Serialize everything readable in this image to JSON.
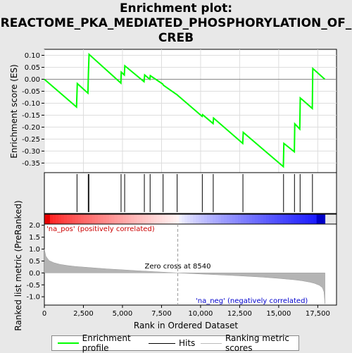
{
  "title_lines": [
    "Enrichment plot:",
    "REACTOME_PKA_MEDIATED_PHOSPHORYLATION_OF_",
    "CREB"
  ],
  "chart_data": {
    "type": "line",
    "xlabel": "Rank in Ordered Dataset",
    "x_ticks": [
      0,
      2500,
      5000,
      7500,
      10000,
      12500,
      15000,
      17500
    ],
    "x_tick_labels": [
      "0",
      "2,500",
      "5,000",
      "7,500",
      "10,000",
      "12,500",
      "15,000",
      "17,500"
    ],
    "xlim": [
      0,
      18700
    ],
    "es_panel": {
      "ylabel": "Enrichment score (ES)",
      "ylim": [
        -0.39,
        0.125
      ],
      "y_ticks": [
        0.1,
        0.05,
        0.0,
        -0.05,
        -0.1,
        -0.15,
        -0.2,
        -0.25,
        -0.3,
        -0.35
      ],
      "y_tick_labels": [
        "0.10",
        "0.05",
        "0.00",
        "-0.05",
        "-0.10",
        "-0.15",
        "-0.20",
        "-0.25",
        "-0.30",
        "-0.35"
      ],
      "series": [
        {
          "name": "Enrichment profile",
          "color": "#00ff00",
          "x": [
            0,
            2060,
            2110,
            2790,
            2820,
            2860,
            4900,
            4920,
            5120,
            5150,
            6380,
            6420,
            6750,
            6780,
            7580,
            7620,
            8500,
            10100,
            10130,
            10800,
            10830,
            12700,
            12730,
            15300,
            15330,
            16000,
            16030,
            16350,
            16380,
            17150,
            17180,
            17950
          ],
          "y": [
            0.0,
            -0.116,
            -0.018,
            -0.058,
            0.025,
            0.104,
            -0.016,
            0.03,
            0.018,
            0.056,
            -0.01,
            0.018,
            0.0,
            0.015,
            -0.02,
            -0.025,
            -0.065,
            -0.155,
            -0.148,
            -0.185,
            -0.162,
            -0.268,
            -0.222,
            -0.365,
            -0.268,
            -0.303,
            -0.186,
            -0.208,
            -0.078,
            -0.122,
            0.045,
            0.0
          ]
        }
      ]
    },
    "hits": {
      "name": "Hits",
      "x": [
        2090,
        2810,
        2850,
        4910,
        5140,
        6400,
        6770,
        7600,
        8500,
        10110,
        10810,
        12710,
        15310,
        16010,
        16370,
        17160
      ]
    },
    "ranked_panel": {
      "ylabel": "Ranked list metric (PreRanked)",
      "ylim": [
        -1.35,
        2.05
      ],
      "y_ticks": [
        2.0,
        1.5,
        1.0,
        0.5,
        0.0,
        -0.5,
        -1.0
      ],
      "y_tick_labels": [
        "2.0",
        "1.5",
        "1.0",
        "0.5",
        "0.0",
        "-0.5",
        "-1.0"
      ],
      "series_name": "Ranking metric scores",
      "x": [
        0,
        100,
        300,
        600,
        1000,
        1500,
        2000,
        3000,
        4000,
        5000,
        6000,
        7000,
        8000,
        8540,
        9000,
        10000,
        11000,
        12000,
        13000,
        14000,
        15000,
        16000,
        16500,
        17000,
        17300,
        17600,
        17800,
        17900,
        17960
      ],
      "y": [
        1.0,
        0.7,
        0.52,
        0.43,
        0.36,
        0.31,
        0.27,
        0.22,
        0.17,
        0.13,
        0.09,
        0.055,
        0.02,
        0.0,
        -0.015,
        -0.045,
        -0.075,
        -0.105,
        -0.14,
        -0.18,
        -0.23,
        -0.29,
        -0.33,
        -0.39,
        -0.44,
        -0.52,
        -0.62,
        -0.8,
        -1.3
      ]
    },
    "zero_cross": 8540,
    "annotations": {
      "pos_label": "'na_pos' (positively correlated)",
      "neg_label": "'na_neg' (negatively correlated)",
      "zero_label": "Zero cross at 8540"
    },
    "legend": [
      "Enrichment profile",
      "Hits",
      "Ranking metric scores"
    ]
  },
  "colors": {
    "es_line": "#00ff00",
    "pos_text": "#cc0000",
    "neg_text": "#0000cc",
    "metric_fill": "#b4b4b4"
  }
}
